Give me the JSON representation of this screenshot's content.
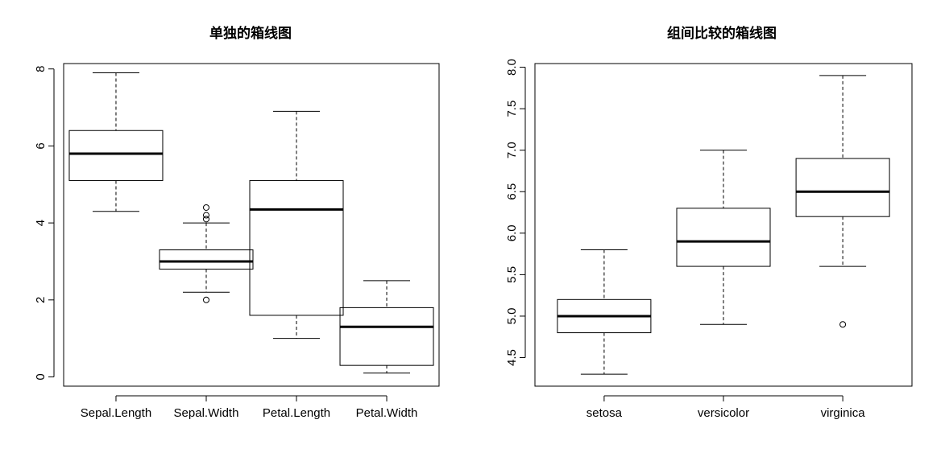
{
  "chart_data": [
    {
      "type": "boxplot",
      "title": "单独的箱线图",
      "xlabel": "",
      "ylabel": "",
      "ylim": [
        -0.24,
        8.14
      ],
      "yticks": [
        0,
        2,
        4,
        6,
        8
      ],
      "yticks_labels": [
        "0",
        "2",
        "4",
        "6",
        "8"
      ],
      "grid": false,
      "categories": [
        "Sepal.Length",
        "Sepal.Width",
        "Petal.Length",
        "Petal.Width"
      ],
      "boxes": [
        {
          "min": 4.3,
          "q1": 5.1,
          "median": 5.8,
          "q3": 6.4,
          "max": 7.9,
          "outliers": []
        },
        {
          "min": 2.2,
          "q1": 2.8,
          "median": 3.0,
          "q3": 3.3,
          "max": 4.0,
          "outliers": [
            4.4,
            4.1,
            4.2,
            2.0
          ]
        },
        {
          "min": 1.0,
          "q1": 1.6,
          "median": 4.35,
          "q3": 5.1,
          "max": 6.9,
          "outliers": []
        },
        {
          "min": 0.1,
          "q1": 0.3,
          "median": 1.3,
          "q3": 1.8,
          "max": 2.5,
          "outliers": []
        }
      ]
    },
    {
      "type": "boxplot",
      "title": "组间比较的箱线图",
      "xlabel": "",
      "ylabel": "",
      "ylim": [
        4.156,
        8.044
      ],
      "yticks": [
        4.5,
        5.0,
        5.5,
        6.0,
        6.5,
        7.0,
        7.5,
        8.0
      ],
      "yticks_labels": [
        "4.5",
        "5.0",
        "5.5",
        "6.0",
        "6.5",
        "7.0",
        "7.5",
        "8.0"
      ],
      "grid": false,
      "categories": [
        "setosa",
        "versicolor",
        "virginica"
      ],
      "boxes": [
        {
          "min": 4.3,
          "q1": 4.8,
          "median": 5.0,
          "q3": 5.2,
          "max": 5.8,
          "outliers": []
        },
        {
          "min": 4.9,
          "q1": 5.6,
          "median": 5.9,
          "q3": 6.3,
          "max": 7.0,
          "outliers": []
        },
        {
          "min": 5.6,
          "q1": 6.2,
          "median": 6.5,
          "q3": 6.9,
          "max": 7.9,
          "outliers": [
            4.9
          ]
        }
      ]
    }
  ]
}
